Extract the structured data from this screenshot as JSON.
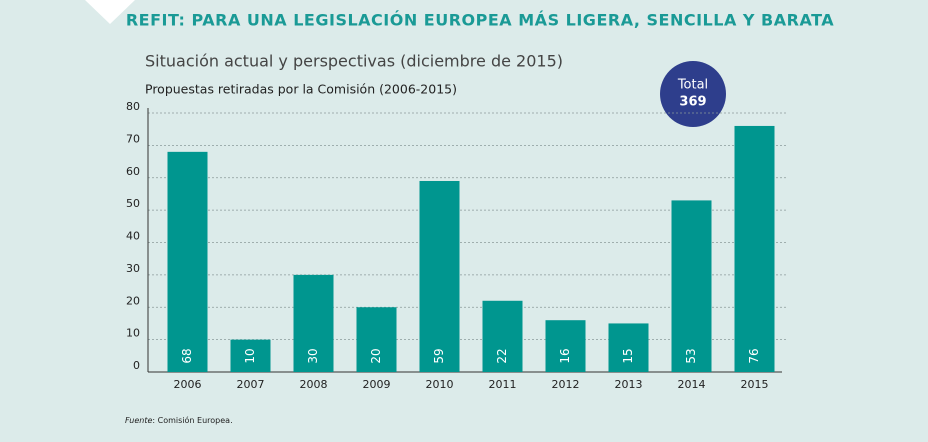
{
  "chart_data": {
    "type": "bar",
    "header": "REFIT: PARA UNA LEGISLACIÓN EUROPEA MÁS LIGERA, SENCILLA Y BARATA",
    "title": "Situación actual y perspectivas (diciembre de 2015)",
    "y_label": "Propuestas retiradas por la Comisión (2006-2015)",
    "categories": [
      "2006",
      "2007",
      "2008",
      "2009",
      "2010",
      "2011",
      "2012",
      "2013",
      "2014",
      "2015"
    ],
    "values": [
      68,
      10,
      30,
      20,
      59,
      22,
      16,
      15,
      53,
      76
    ],
    "color": "#00968f",
    "ylim": [
      0,
      80
    ],
    "yticks": [
      0,
      10,
      20,
      30,
      40,
      50,
      60,
      70,
      80
    ],
    "grid": true,
    "total": {
      "label": "Total",
      "value": "369"
    },
    "source": {
      "label": "Fuente",
      "text": ": Comisión Europea."
    }
  }
}
